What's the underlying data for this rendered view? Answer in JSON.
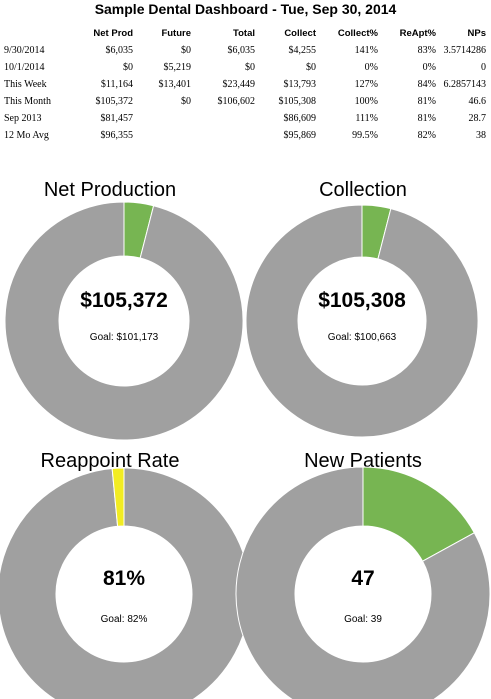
{
  "header": {
    "title": "Sample Dental Dashboard -  Tue, Sep 30, 2014"
  },
  "table": {
    "columns": [
      "",
      "Net Prod",
      "Future",
      "Total",
      "Collect",
      "Collect%",
      "ReApt%",
      "NPs"
    ],
    "rows": [
      [
        "9/30/2014",
        "$6,035",
        "$0",
        "$6,035",
        "$4,255",
        "141%",
        "83%",
        "3.5714286"
      ],
      [
        "10/1/2014",
        "$0",
        "$5,219",
        "$0",
        "$0",
        "0%",
        "0%",
        "0"
      ],
      [
        "This Week",
        "$11,164",
        "$13,401",
        "$23,449",
        "$13,793",
        "127%",
        "84%",
        "6.2857143"
      ],
      [
        "This Month",
        "$105,372",
        "$0",
        "$106,602",
        "$105,308",
        "100%",
        "81%",
        "46.6"
      ],
      [
        "Sep 2013",
        "$81,457",
        "",
        "",
        "$86,609",
        "111%",
        "81%",
        "28.7"
      ],
      [
        "12 Mo Avg",
        "$96,355",
        "",
        "",
        "$95,869",
        "99.5%",
        "82%",
        "38"
      ]
    ]
  },
  "chart_data": [
    {
      "type": "pie",
      "title": "Net Production",
      "value_label": "$105,372",
      "goal_label": "Goal: $101,173",
      "value": 105372,
      "goal": 101173,
      "slices": [
        {
          "label": "over goal",
          "fraction": 0.04,
          "color": "#77b552"
        },
        {
          "label": "",
          "fraction": 0.96,
          "color": "#a0a0a0"
        }
      ]
    },
    {
      "type": "pie",
      "title": "Collection",
      "value_label": "$105,308",
      "goal_label": "Goal: $100,663",
      "value": 105308,
      "goal": 100663,
      "slices": [
        {
          "label": "over goal",
          "fraction": 0.04,
          "color": "#77b552"
        },
        {
          "label": "",
          "fraction": 0.96,
          "color": "#a0a0a0"
        }
      ]
    },
    {
      "type": "pie",
      "title": "Reappoint Rate",
      "value_label": "81%",
      "goal_label": "Goal: 82%",
      "value": 81,
      "goal": 82,
      "slices": [
        {
          "label": "",
          "fraction": 0.985,
          "color": "#a0a0a0"
        },
        {
          "label": "below goal",
          "fraction": 0.015,
          "color": "#f2ec22"
        }
      ]
    },
    {
      "type": "pie",
      "title": "New Patients",
      "value_label": "47",
      "goal_label": "Goal: 39",
      "value": 47,
      "goal": 39,
      "slices": [
        {
          "label": "over goal",
          "fraction": 0.17,
          "color": "#77b552"
        },
        {
          "label": "",
          "fraction": 0.83,
          "color": "#a0a0a0"
        }
      ]
    }
  ]
}
